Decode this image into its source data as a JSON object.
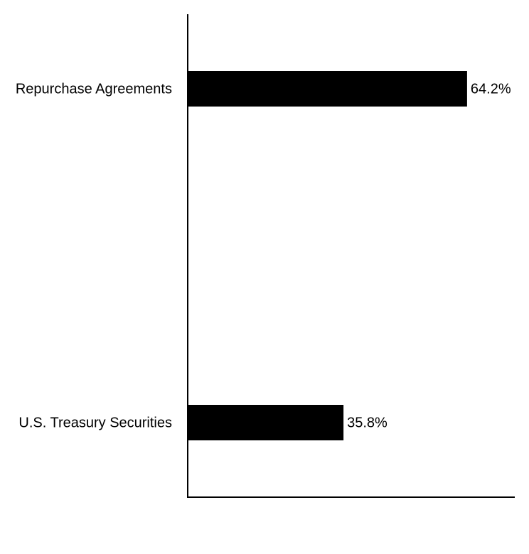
{
  "chart_data": {
    "type": "hbar",
    "categories": [
      "Repurchase Agreements",
      "U.S. Treasury Securities"
    ],
    "values": [
      64.2,
      35.8
    ],
    "value_labels": [
      "64.2%",
      "35.8%"
    ],
    "color": "#000000",
    "xlim": [
      0,
      75
    ]
  }
}
